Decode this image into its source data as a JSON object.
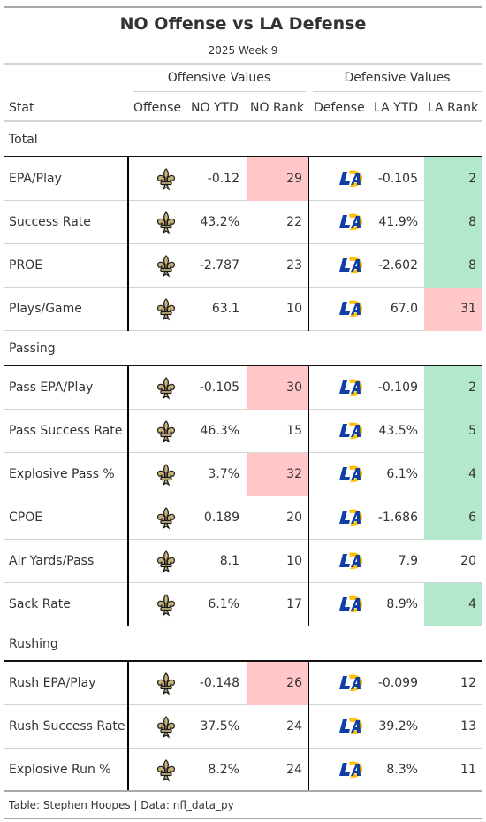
{
  "header": {
    "title": "NO Offense vs LA Defense",
    "subtitle": "2025 Week 9"
  },
  "spanners": {
    "offense": "Offensive Values",
    "defense": "Defensive Values"
  },
  "columns": {
    "stat": "Stat",
    "offense": "Offense",
    "no_ytd": "NO YTD",
    "no_rank": "NO Rank",
    "defense": "Defense",
    "la_ytd": "LA YTD",
    "la_rank": "LA Rank"
  },
  "colors": {
    "bad": "#ffc7c7",
    "good": "#b3e8cc",
    "saints_gold": "#c9b27a",
    "saints_dark": "#1a1a1a",
    "rams_blue": "#0f3fa6",
    "rams_gold": "#ffc107"
  },
  "icons": {
    "offense": "saints-fleur-de-lis-icon",
    "defense": "rams-la-logo-icon"
  },
  "groups": [
    {
      "label": "Total",
      "rows": [
        {
          "stat": "EPA/Play",
          "no_ytd": "-0.12",
          "no_rank": "29",
          "no_color": "bad",
          "la_ytd": "-0.105",
          "la_rank": "2",
          "la_color": "good"
        },
        {
          "stat": "Success Rate",
          "no_ytd": "43.2%",
          "no_rank": "22",
          "no_color": "",
          "la_ytd": "41.9%",
          "la_rank": "8",
          "la_color": "good"
        },
        {
          "stat": "PROE",
          "no_ytd": "-2.787",
          "no_rank": "23",
          "no_color": "",
          "la_ytd": "-2.602",
          "la_rank": "8",
          "la_color": "good"
        },
        {
          "stat": "Plays/Game",
          "no_ytd": "63.1",
          "no_rank": "10",
          "no_color": "",
          "la_ytd": "67.0",
          "la_rank": "31",
          "la_color": "bad"
        }
      ]
    },
    {
      "label": "Passing",
      "rows": [
        {
          "stat": "Pass EPA/Play",
          "no_ytd": "-0.105",
          "no_rank": "30",
          "no_color": "bad",
          "la_ytd": "-0.109",
          "la_rank": "2",
          "la_color": "good"
        },
        {
          "stat": "Pass Success Rate",
          "no_ytd": "46.3%",
          "no_rank": "15",
          "no_color": "",
          "la_ytd": "43.5%",
          "la_rank": "5",
          "la_color": "good"
        },
        {
          "stat": "Explosive Pass %",
          "no_ytd": "3.7%",
          "no_rank": "32",
          "no_color": "bad",
          "la_ytd": "6.1%",
          "la_rank": "4",
          "la_color": "good"
        },
        {
          "stat": "CPOE",
          "no_ytd": "0.189",
          "no_rank": "20",
          "no_color": "",
          "la_ytd": "-1.686",
          "la_rank": "6",
          "la_color": "good"
        },
        {
          "stat": "Air Yards/Pass",
          "no_ytd": "8.1",
          "no_rank": "10",
          "no_color": "",
          "la_ytd": "7.9",
          "la_rank": "20",
          "la_color": ""
        },
        {
          "stat": "Sack Rate",
          "no_ytd": "6.1%",
          "no_rank": "17",
          "no_color": "",
          "la_ytd": "8.9%",
          "la_rank": "4",
          "la_color": "good"
        }
      ]
    },
    {
      "label": "Rushing",
      "rows": [
        {
          "stat": "Rush EPA/Play",
          "no_ytd": "-0.148",
          "no_rank": "26",
          "no_color": "bad",
          "la_ytd": "-0.099",
          "la_rank": "12",
          "la_color": ""
        },
        {
          "stat": "Rush Success Rate",
          "no_ytd": "37.5%",
          "no_rank": "24",
          "no_color": "",
          "la_ytd": "39.2%",
          "la_rank": "13",
          "la_color": ""
        },
        {
          "stat": "Explosive Run %",
          "no_ytd": "8.2%",
          "no_rank": "24",
          "no_color": "",
          "la_ytd": "8.3%",
          "la_rank": "11",
          "la_color": ""
        }
      ]
    }
  ],
  "footer": "Table: Stephen Hoopes | Data: nfl_data_py"
}
